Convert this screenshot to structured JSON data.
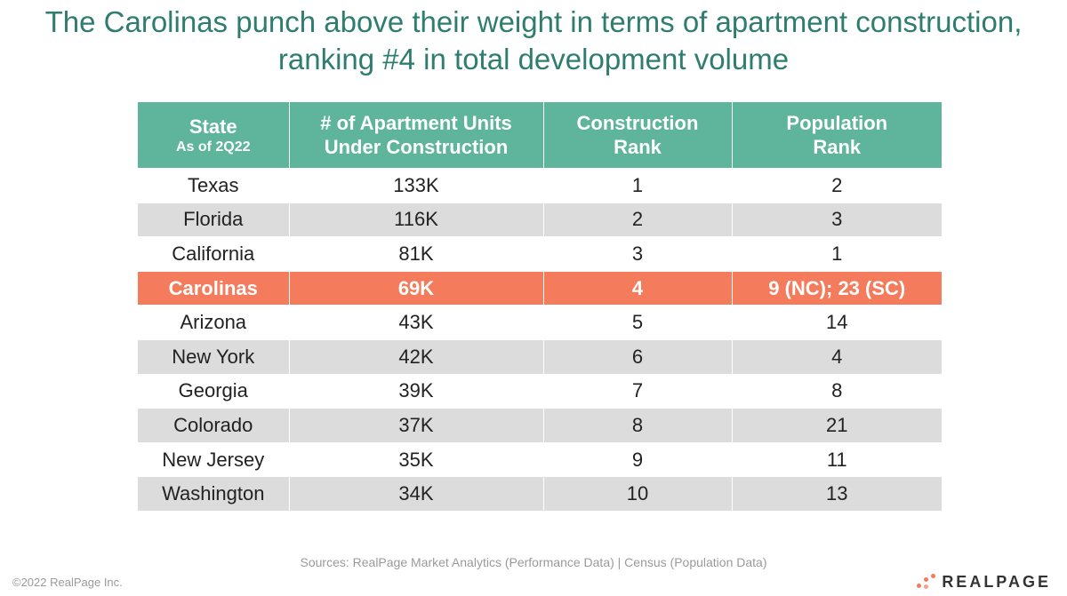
{
  "title_line1": "The Carolinas punch above their weight in terms of apartment construction,",
  "title_line2": "ranking #4 in total development volume",
  "table": {
    "headers": {
      "state": "State",
      "state_sub": "As of 2Q22",
      "units_line1": "# of Apartment Units",
      "units_line2": "Under Construction",
      "construction_line1": "Construction",
      "construction_line2": "Rank",
      "population_line1": "Population",
      "population_line2": "Rank"
    },
    "rows": [
      {
        "state": "Texas",
        "units": "133K",
        "construction_rank": "1",
        "population_rank": "2"
      },
      {
        "state": "Florida",
        "units": "116K",
        "construction_rank": "2",
        "population_rank": "3"
      },
      {
        "state": "California",
        "units": "81K",
        "construction_rank": "3",
        "population_rank": "1"
      },
      {
        "state": "Carolinas",
        "units": "69K",
        "construction_rank": "4",
        "population_rank": "9 (NC); 23 (SC)",
        "highlight": true
      },
      {
        "state": "Arizona",
        "units": "43K",
        "construction_rank": "5",
        "population_rank": "14"
      },
      {
        "state": "New York",
        "units": "42K",
        "construction_rank": "6",
        "population_rank": "4"
      },
      {
        "state": "Georgia",
        "units": "39K",
        "construction_rank": "7",
        "population_rank": "8"
      },
      {
        "state": "Colorado",
        "units": "37K",
        "construction_rank": "8",
        "population_rank": "21"
      },
      {
        "state": "New Jersey",
        "units": "35K",
        "construction_rank": "9",
        "population_rank": "11"
      },
      {
        "state": "Washington",
        "units": "34K",
        "construction_rank": "10",
        "population_rank": "13"
      }
    ]
  },
  "sources": "Sources: RealPage Market Analytics (Performance Data) | Census (Population Data)",
  "copyright": "©2022 RealPage Inc.",
  "logo_text": "REALPAGE",
  "colors": {
    "title": "#2e7d6f",
    "header_bg": "#5fb49c",
    "highlight_bg": "#f47b5b",
    "stripe_bg": "#dcdcdc"
  }
}
